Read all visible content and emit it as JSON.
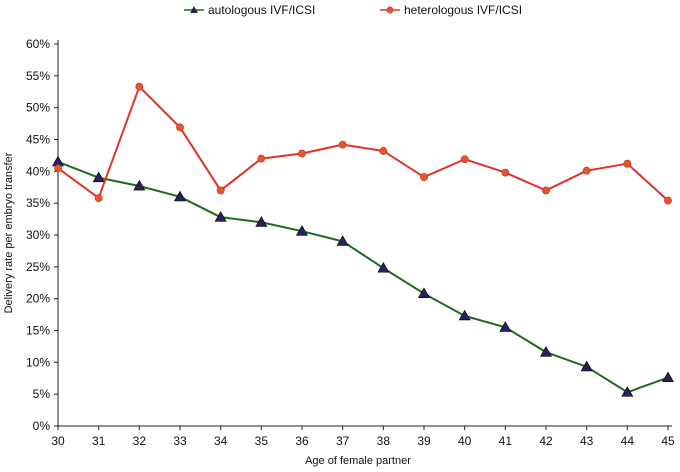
{
  "chart_data": {
    "type": "line",
    "title": "",
    "xlabel": "Age of female partner",
    "ylabel": "Delivery rate per embryo transfer",
    "x": [
      30,
      31,
      32,
      33,
      34,
      35,
      36,
      37,
      38,
      39,
      40,
      41,
      42,
      43,
      44,
      45
    ],
    "x_ticks": [
      "30",
      "31",
      "32",
      "33",
      "34",
      "35",
      "36",
      "37",
      "38",
      "39",
      "40",
      "41",
      "42",
      "43",
      "44",
      "45"
    ],
    "ylim": [
      0,
      60
    ],
    "y_ticks": [
      "0%",
      "5%",
      "10%",
      "15%",
      "20%",
      "25%",
      "30%",
      "35%",
      "40%",
      "45%",
      "50%",
      "55%",
      "60%"
    ],
    "grid": false,
    "legend_position": "top",
    "series": [
      {
        "name": "autologous IVF/ICSI",
        "color": "#1e6b1e",
        "marker": "triangle",
        "marker_color": "#2a2060",
        "values": [
          41.5,
          39.0,
          37.7,
          36.0,
          32.8,
          32.0,
          30.6,
          29.0,
          24.8,
          20.8,
          17.3,
          15.5,
          11.6,
          9.3,
          5.3,
          7.6
        ]
      },
      {
        "name": "heterologous IVF/ICSI",
        "color": "#e0332a",
        "marker": "circle",
        "marker_color": "#e4572e",
        "values": [
          40.5,
          35.8,
          53.3,
          46.9,
          37.0,
          42.0,
          42.8,
          44.2,
          43.2,
          39.1,
          41.9,
          39.8,
          37.0,
          40.1,
          41.2,
          35.4
        ]
      }
    ]
  }
}
